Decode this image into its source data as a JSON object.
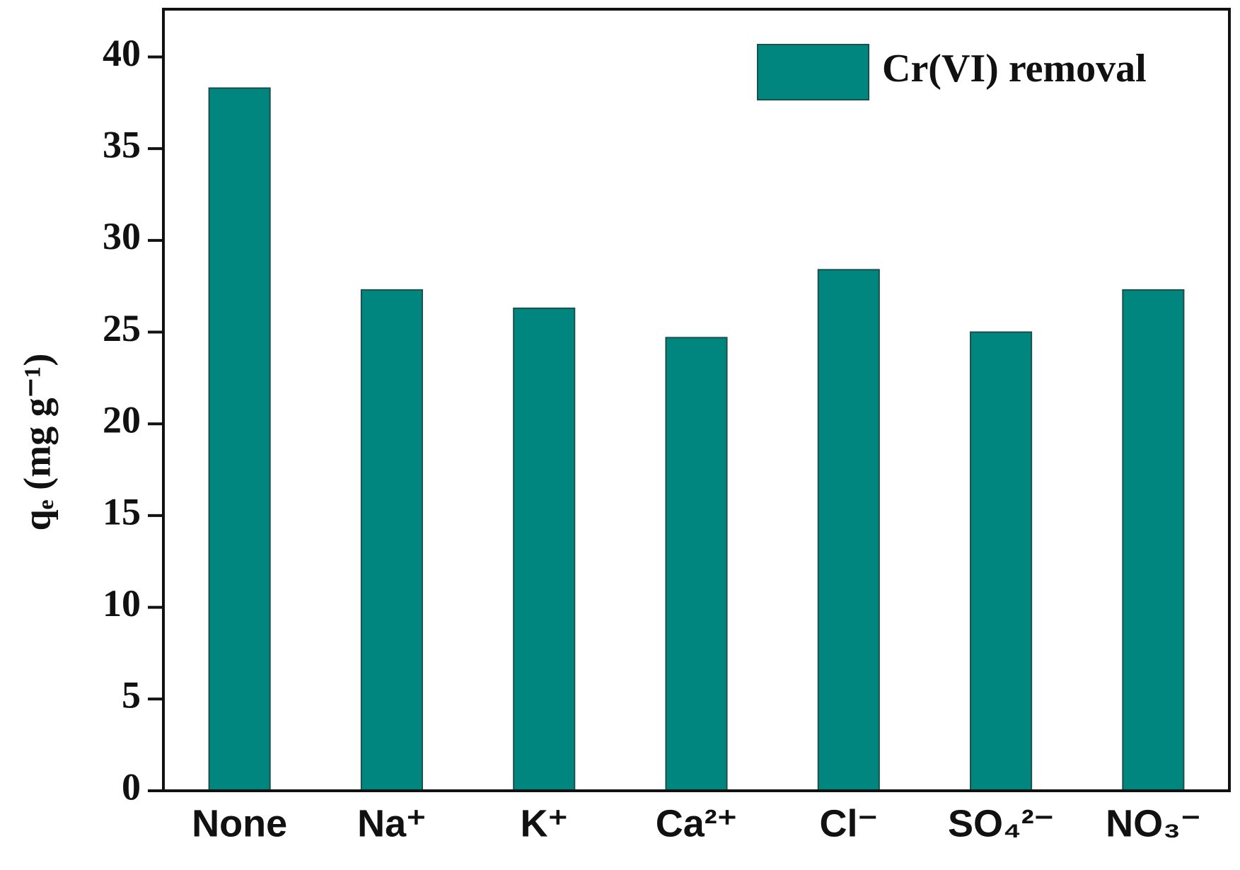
{
  "chart_data": {
    "type": "bar",
    "y_label": "qₑ (mg g⁻¹)",
    "categories": [
      "None",
      "Na⁺",
      "K⁺",
      "Ca²⁺",
      "Cl⁻",
      "SO₄²⁻",
      "NO₃⁻"
    ],
    "series": [
      {
        "name": "Cr(VI) removal",
        "color": "#00857f",
        "values": [
          38.3,
          27.3,
          26.3,
          24.7,
          28.4,
          25.0,
          27.3
        ]
      }
    ],
    "ylim": [
      0,
      42.6
    ],
    "yticks": [
      0,
      5,
      10,
      15,
      20,
      25,
      30,
      35,
      40
    ],
    "grid": false,
    "legend": "upper right"
  }
}
